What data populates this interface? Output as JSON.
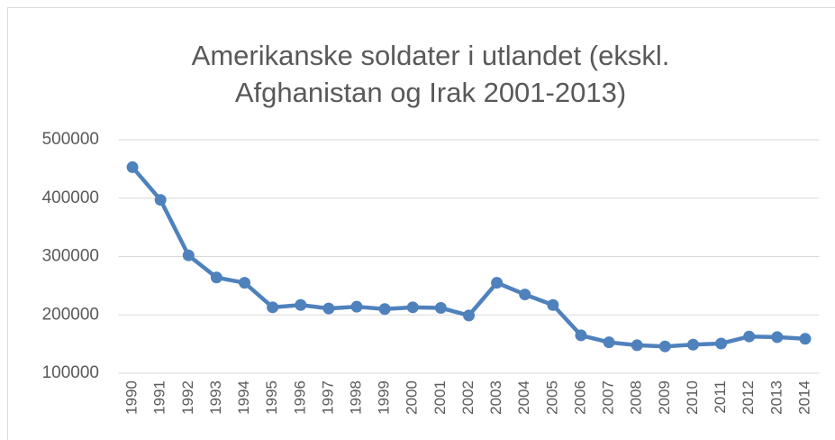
{
  "chart_data": {
    "type": "line",
    "title": [
      "Amerikanske soldater i utlandet (ekskl.",
      "Afghanistan og Irak 2001-2013)"
    ],
    "categories": [
      "1990",
      "1991",
      "1992",
      "1993",
      "1994",
      "1995",
      "1996",
      "1997",
      "1998",
      "1999",
      "2000",
      "2001",
      "2002",
      "2003",
      "2004",
      "2005",
      "2006",
      "2007",
      "2008",
      "2009",
      "2010",
      "2011",
      "2012",
      "2013",
      "2014"
    ],
    "series": [
      {
        "name": "Amerikanske soldater i utlandet",
        "color": "#4f81bd",
        "values": [
          453000,
          397000,
          302000,
          264000,
          255000,
          213000,
          217000,
          211000,
          214000,
          210000,
          213000,
          212000,
          199000,
          255000,
          235000,
          217000,
          165000,
          153000,
          148000,
          146000,
          149000,
          151000,
          163000,
          162000,
          159000
        ]
      }
    ],
    "ylim": [
      100000,
      500000
    ],
    "yticks": [
      100000,
      200000,
      300000,
      400000,
      500000
    ],
    "grid": true
  }
}
